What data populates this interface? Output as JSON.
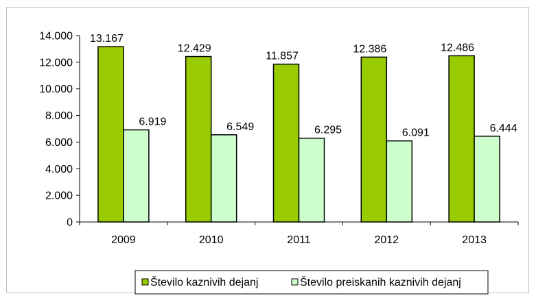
{
  "chart_data": {
    "type": "bar",
    "categories": [
      "2009",
      "2010",
      "2011",
      "2012",
      "2013"
    ],
    "series": [
      {
        "name": "Število kaznivih dejanj",
        "values": [
          13167,
          12429,
          11857,
          12386,
          12486
        ],
        "labels": [
          "13.167",
          "12.429",
          "11.857",
          "12.386",
          "12.486"
        ],
        "color": "#99cc00"
      },
      {
        "name": "Število preiskanih kaznivih dejanj",
        "values": [
          6919,
          6549,
          6295,
          6091,
          6444
        ],
        "labels": [
          "6.919",
          "6.549",
          "6.295",
          "6.091",
          "6.444"
        ],
        "color": "#ccffcc"
      }
    ],
    "ylim": [
      0,
      14000
    ],
    "yticks": [
      0,
      2000,
      4000,
      6000,
      8000,
      10000,
      12000,
      14000
    ],
    "ytick_labels": [
      "0",
      "2.000",
      "4.000",
      "6.000",
      "8.000",
      "10.000",
      "12.000",
      "14.000"
    ],
    "title": "",
    "xlabel": "",
    "ylabel": "",
    "grid": false,
    "legend_position": "bottom"
  }
}
